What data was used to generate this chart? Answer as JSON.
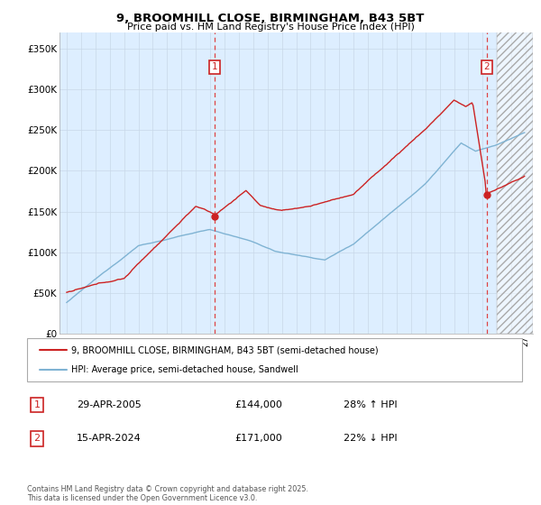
{
  "title": "9, BROOMHILL CLOSE, BIRMINGHAM, B43 5BT",
  "subtitle": "Price paid vs. HM Land Registry's House Price Index (HPI)",
  "ylabel_ticks": [
    "£0",
    "£50K",
    "£100K",
    "£150K",
    "£200K",
    "£250K",
    "£300K",
    "£350K"
  ],
  "ytick_values": [
    0,
    50000,
    100000,
    150000,
    200000,
    250000,
    300000,
    350000
  ],
  "ylim": [
    0,
    370000
  ],
  "xlim_start": 1994.5,
  "xlim_end": 2027.5,
  "hpi_color": "#7fb3d3",
  "price_color": "#cc2222",
  "dashed_color": "#dd4444",
  "chart_bg": "#ddeeff",
  "annotation1_year": 2005.3,
  "annotation1_value": 144000,
  "annotation2_year": 2024.29,
  "annotation2_value": 171000,
  "legend_line1": "9, BROOMHILL CLOSE, BIRMINGHAM, B43 5BT (semi-detached house)",
  "legend_line2": "HPI: Average price, semi-detached house, Sandwell",
  "annotation1_date": "29-APR-2005",
  "annotation1_price": "£144,000",
  "annotation1_hpi": "28% ↑ HPI",
  "annotation2_date": "15-APR-2024",
  "annotation2_price": "£171,000",
  "annotation2_hpi": "22% ↓ HPI",
  "footer": "Contains HM Land Registry data © Crown copyright and database right 2025.\nThis data is licensed under the Open Government Licence v3.0.",
  "background_color": "#ffffff",
  "grid_color": "#c8d8e8"
}
